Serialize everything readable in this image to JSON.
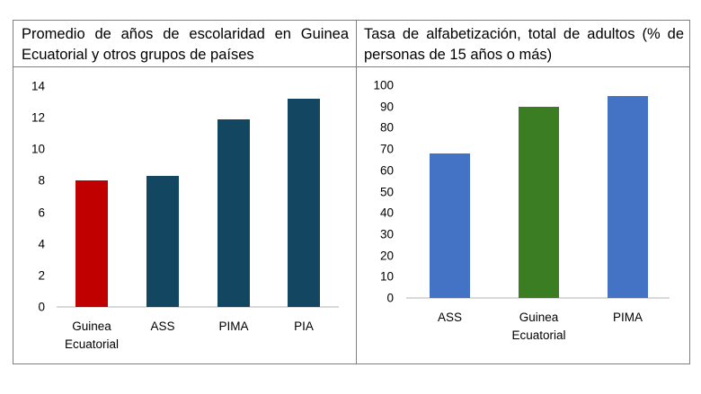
{
  "panels": {
    "left": {
      "title": "Promedio de años de escolaridad en Guinea Ecuatorial y otros grupos de países"
    },
    "right": {
      "title": "Tasa de alfabetización, total de adultos (% de personas de 15 años o más)"
    }
  },
  "chart_data": [
    {
      "type": "bar",
      "title": "Promedio de años de escolaridad en Guinea Ecuatorial y otros grupos de países",
      "categories": [
        "Guinea Ecuatorial",
        "ASS",
        "PIMA",
        "PIA"
      ],
      "category_labels": [
        "Guinea\nEcuatorial",
        "ASS",
        "PIMA",
        "PIA"
      ],
      "values": [
        8.0,
        8.3,
        11.9,
        13.2
      ],
      "colors": [
        "#c00000",
        "#134661",
        "#134661",
        "#134661"
      ],
      "yticks": [
        "0",
        "2",
        "4",
        "6",
        "8",
        "10",
        "12",
        "14"
      ],
      "ylim": [
        0,
        14
      ],
      "xlabel": "",
      "ylabel": "",
      "grid": false,
      "legend": "none"
    },
    {
      "type": "bar",
      "title": "Tasa de alfabetización, total de adultos (% de personas de 15 años o más)",
      "categories": [
        "ASS",
        "Guinea Ecuatorial",
        "PIMA"
      ],
      "category_labels": [
        "ASS",
        "Guinea\nEcuatorial",
        "PIMA"
      ],
      "values": [
        68,
        90,
        95
      ],
      "colors": [
        "#4472c4",
        "#3a7d22",
        "#4472c4"
      ],
      "yticks": [
        "0",
        "10",
        "20",
        "30",
        "40",
        "50",
        "60",
        "70",
        "80",
        "90",
        "100"
      ],
      "ylim": [
        0,
        100
      ],
      "xlabel": "",
      "ylabel": "",
      "grid": false,
      "legend": "none"
    }
  ]
}
